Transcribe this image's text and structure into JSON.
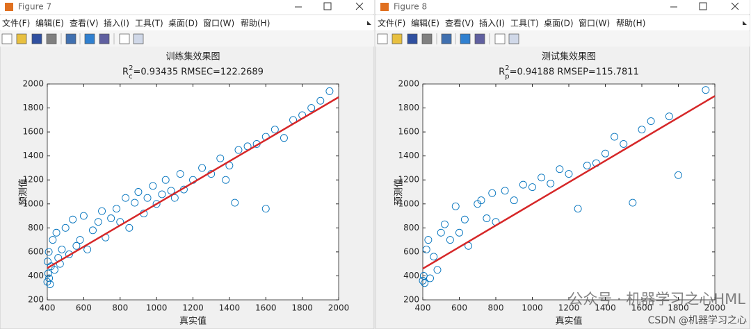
{
  "windows": [
    {
      "title": "Figure 7",
      "menu": [
        "文件(F)",
        "编辑(E)",
        "查看(V)",
        "插入(I)",
        "工具(T)",
        "桌面(D)",
        "窗口(W)",
        "帮助(H)"
      ]
    },
    {
      "title": "Figure 8",
      "menu": [
        "文件(F)",
        "编辑(E)",
        "查看(V)",
        "插入(I)",
        "工具(T)",
        "桌面(D)",
        "窗口(W)",
        "帮助(H)"
      ]
    }
  ],
  "chart_data": [
    {
      "type": "scatter",
      "title": "训练集效果图",
      "subtitle": {
        "base": "R",
        "sup": "2",
        "sub": "c",
        "rest": "=0.93435  RMSEC=122.2689"
      },
      "xlabel": "真实值",
      "ylabel": "预测值",
      "xlim": [
        400,
        2000
      ],
      "ylim": [
        200,
        2000
      ],
      "xticks": [
        400,
        600,
        800,
        1000,
        1200,
        1400,
        1600,
        1800,
        2000
      ],
      "yticks": [
        200,
        400,
        600,
        800,
        1000,
        1200,
        1400,
        1600,
        1800,
        2000
      ],
      "series": [
        {
          "color": "#0072bd",
          "x": [
            400,
            405,
            410,
            402,
            408,
            415,
            420,
            430,
            440,
            450,
            460,
            470,
            480,
            500,
            520,
            540,
            560,
            580,
            600,
            620,
            650,
            680,
            700,
            720,
            750,
            780,
            800,
            830,
            850,
            880,
            900,
            930,
            950,
            980,
            1000,
            1030,
            1050,
            1080,
            1100,
            1130,
            1150,
            1200,
            1250,
            1300,
            1350,
            1380,
            1400,
            1430,
            1450,
            1500,
            1550,
            1600,
            1600,
            1650,
            1700,
            1750,
            1800,
            1850,
            1900,
            1950
          ],
          "values": [
            350,
            420,
            380,
            520,
            600,
            330,
            480,
            700,
            450,
            760,
            550,
            500,
            620,
            800,
            580,
            870,
            650,
            700,
            900,
            620,
            780,
            850,
            940,
            720,
            880,
            960,
            850,
            1050,
            800,
            1010,
            1100,
            920,
            1050,
            1150,
            1000,
            1080,
            1200,
            1110,
            1050,
            1250,
            1120,
            1200,
            1300,
            1250,
            1380,
            1200,
            1320,
            1010,
            1450,
            1480,
            1500,
            1560,
            960,
            1620,
            1550,
            1700,
            1740,
            1800,
            1860,
            1940
          ]
        }
      ],
      "fit": {
        "type": "line",
        "color": "#d62728",
        "x": [
          400,
          2000
        ],
        "values": [
          465,
          1890
        ]
      }
    },
    {
      "type": "scatter",
      "title": "测试集效果图",
      "subtitle": {
        "base": "R",
        "sup": "2",
        "sub": "p",
        "rest": "=0.94188  RMSEP=115.7811"
      },
      "xlabel": "真实值",
      "ylabel": "预测值",
      "xlim": [
        400,
        2000
      ],
      "ylim": [
        200,
        2000
      ],
      "xticks": [
        400,
        600,
        800,
        1000,
        1200,
        1400,
        1600,
        1800,
        2000
      ],
      "yticks": [
        200,
        400,
        600,
        800,
        1000,
        1200,
        1400,
        1600,
        1800,
        2000
      ],
      "series": [
        {
          "color": "#0072bd",
          "x": [
            400,
            405,
            410,
            420,
            430,
            440,
            460,
            480,
            500,
            520,
            550,
            580,
            600,
            630,
            650,
            700,
            720,
            750,
            780,
            800,
            850,
            900,
            950,
            1000,
            1050,
            1100,
            1150,
            1200,
            1250,
            1300,
            1350,
            1400,
            1450,
            1500,
            1550,
            1600,
            1650,
            1750,
            1800,
            1950
          ],
          "values": [
            360,
            400,
            340,
            620,
            700,
            380,
            560,
            450,
            760,
            830,
            700,
            980,
            760,
            870,
            650,
            1000,
            1030,
            880,
            1090,
            850,
            1110,
            1030,
            1160,
            1140,
            1220,
            1170,
            1290,
            1250,
            960,
            1320,
            1340,
            1420,
            1560,
            1500,
            1010,
            1620,
            1690,
            1730,
            1240,
            1950
          ]
        }
      ],
      "fit": {
        "type": "line",
        "color": "#d62728",
        "x": [
          400,
          2000
        ],
        "values": [
          460,
          1900
        ]
      }
    }
  ],
  "watermark": {
    "line1": "公众号 · 机器学习之心HML",
    "line2": "CSDN @机器学习之心"
  }
}
